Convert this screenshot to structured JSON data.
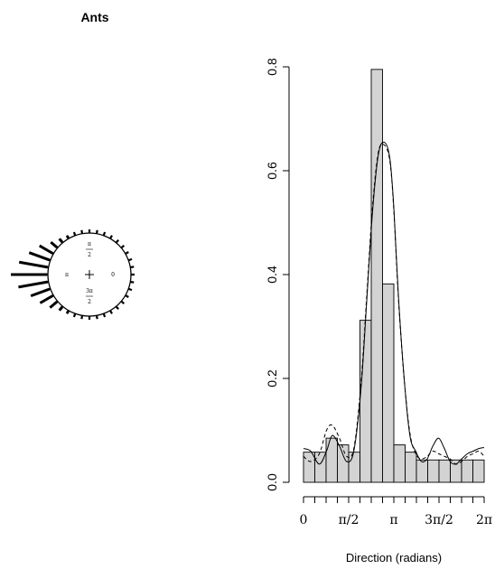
{
  "chart_data": [
    {
      "type": "rose",
      "title": "Ants",
      "circle_labels": {
        "right": "0",
        "top_num": "π",
        "top_den": "2",
        "left": "π",
        "bottom_num": "3π",
        "bottom_den": "2"
      },
      "spokes": [
        {
          "angle_deg": 180,
          "length": 1.0
        },
        {
          "angle_deg": 190,
          "length": 0.82
        },
        {
          "angle_deg": 170,
          "length": 0.8
        },
        {
          "angle_deg": 200,
          "length": 0.55
        },
        {
          "angle_deg": 160,
          "length": 0.6
        },
        {
          "angle_deg": 210,
          "length": 0.4
        },
        {
          "angle_deg": 150,
          "length": 0.42
        },
        {
          "angle_deg": 140,
          "length": 0.22
        },
        {
          "angle_deg": 220,
          "length": 0.25
        },
        {
          "angle_deg": 130,
          "length": 0.12
        },
        {
          "angle_deg": 230,
          "length": 0.12
        },
        {
          "angle_deg": 240,
          "length": 0.06
        },
        {
          "angle_deg": 120,
          "length": 0.06
        }
      ],
      "rim_ticks_every_deg": 10
    },
    {
      "type": "bar",
      "subtype": "histogram",
      "xlabel": "Direction (radians)",
      "ylabel": "",
      "bin_edges": [
        0,
        0.3927,
        0.7854,
        1.1781,
        1.5708,
        1.9635,
        2.3562,
        2.7489,
        3.1416,
        3.5343,
        3.927,
        4.3197,
        4.7124,
        5.1051,
        5.4978,
        5.8905,
        6.2832
      ],
      "values": [
        0.058,
        0.058,
        0.085,
        0.072,
        0.058,
        0.312,
        0.795,
        0.382,
        0.072,
        0.058,
        0.043,
        0.043,
        0.043,
        0.043,
        0.043,
        0.043
      ],
      "xlim": [
        0,
        6.2832
      ],
      "ylim": [
        0,
        0.8
      ],
      "yticks": [
        0.0,
        0.2,
        0.4,
        0.6,
        0.8
      ],
      "ytick_labels": [
        "0.0",
        "0.2",
        "0.4",
        "0.6",
        "0.8"
      ],
      "xticks": [
        0,
        1.5708,
        3.1416,
        4.7124,
        6.2832
      ],
      "xtick_labels": [
        "0",
        "π/2",
        "π",
        "3π/2",
        "2π"
      ],
      "series": [
        {
          "style": "solid",
          "x": [
            0,
            0.25,
            0.55,
            0.8,
            1.0,
            1.25,
            1.5,
            1.75,
            2.0,
            2.2,
            2.4,
            2.6,
            2.8,
            3.0,
            3.14,
            3.3,
            3.5,
            3.7,
            3.9,
            4.1,
            4.3,
            4.5,
            4.7,
            4.9,
            5.1,
            5.3,
            5.5,
            5.7,
            5.9,
            6.1,
            6.28
          ],
          "y": [
            0.065,
            0.06,
            0.035,
            0.06,
            0.09,
            0.07,
            0.04,
            0.06,
            0.18,
            0.35,
            0.52,
            0.63,
            0.655,
            0.625,
            0.53,
            0.36,
            0.2,
            0.09,
            0.06,
            0.04,
            0.045,
            0.07,
            0.085,
            0.065,
            0.04,
            0.035,
            0.045,
            0.055,
            0.06,
            0.065,
            0.067
          ]
        },
        {
          "style": "dashed",
          "x": [
            0,
            0.25,
            0.55,
            0.8,
            1.0,
            1.25,
            1.5,
            1.75,
            2.0,
            2.2,
            2.4,
            2.6,
            2.8,
            3.0,
            3.14,
            3.3,
            3.5,
            3.7,
            3.9,
            4.1,
            4.3,
            4.5,
            4.7,
            4.9,
            5.1,
            5.3,
            5.5,
            5.7,
            5.9,
            6.1,
            6.28
          ],
          "y": [
            0.05,
            0.04,
            0.055,
            0.1,
            0.11,
            0.085,
            0.05,
            0.065,
            0.19,
            0.36,
            0.53,
            0.635,
            0.65,
            0.62,
            0.525,
            0.355,
            0.2,
            0.095,
            0.055,
            0.045,
            0.05,
            0.06,
            0.055,
            0.05,
            0.045,
            0.035,
            0.04,
            0.05,
            0.055,
            0.06,
            0.05
          ]
        }
      ]
    }
  ]
}
